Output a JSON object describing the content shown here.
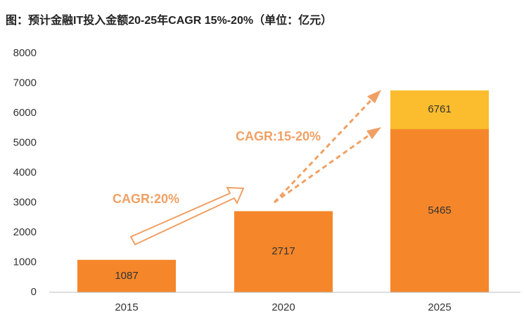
{
  "chart_data": {
    "type": "bar",
    "title": "图：预计金融IT投入金额20-25年CAGR 15%-20%（单位：亿元）",
    "categories": [
      "2015",
      "2020",
      "2025"
    ],
    "series": [
      {
        "color": "#fbbd2e",
        "values": [
          null,
          null,
          6761
        ]
      },
      {
        "color": "#f5862a",
        "values": [
          1087,
          2717,
          5465
        ]
      }
    ],
    "ylim": [
      0,
      8000
    ],
    "yticks": [
      0,
      1000,
      2000,
      3000,
      4000,
      5000,
      6000,
      7000,
      8000
    ],
    "annotations": [
      "CAGR:20%",
      "CAGR:15-20%"
    ]
  }
}
